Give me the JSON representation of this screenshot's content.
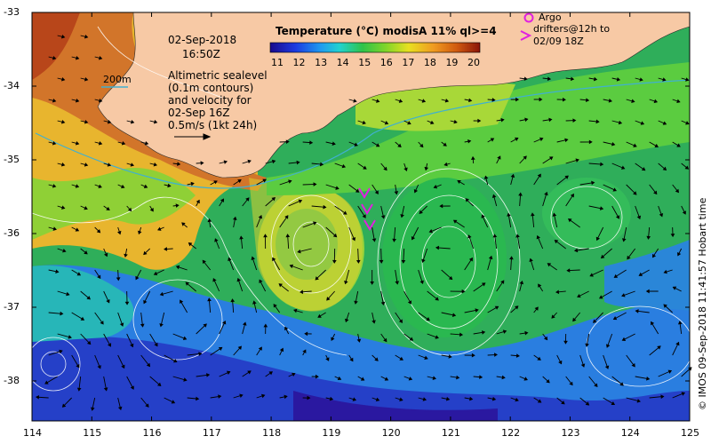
{
  "map": {
    "date": "02-Sep-2018",
    "time": "16:50Z",
    "depth_contour_label": "200m",
    "altimetry_note": [
      "Altimetric sealevel",
      "(0.1m contours)",
      "and velocity for",
      "02-Sep 16Z",
      "0.5m/s (1kt 24h)"
    ],
    "colorbar": {
      "title": "Temperature (°C) modisA 11% ql>=4",
      "ticks": [
        "11",
        "12",
        "13",
        "14",
        "15",
        "16",
        "17",
        "18",
        "19",
        "20"
      ]
    },
    "legend": {
      "argo": "Argo",
      "drifters": [
        "drifters@12h to",
        "02/09 18Z"
      ],
      "marker_color": "#e020e0"
    },
    "axes": {
      "x_ticks": [
        "114",
        "115",
        "116",
        "117",
        "118",
        "119",
        "120",
        "121",
        "122",
        "123",
        "124",
        "125"
      ],
      "y_ticks": [
        "-33",
        "-34",
        "-35",
        "-36",
        "-37",
        "-38"
      ]
    },
    "credit": "© IMOS 09-Sep-2018 11:41:57 Hobart time"
  }
}
